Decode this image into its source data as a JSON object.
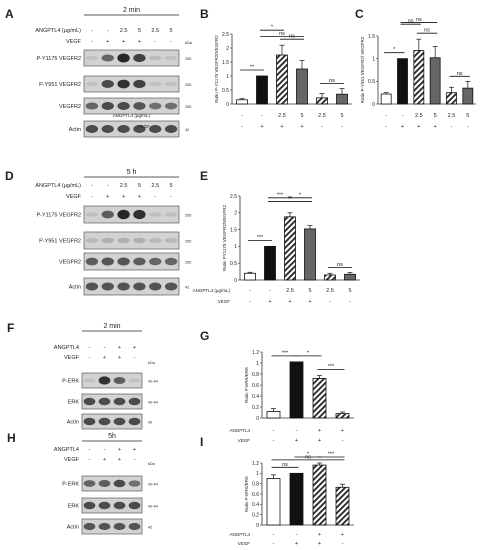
{
  "panels": {
    "A": {
      "letter": "A",
      "time": "2 min",
      "angptl4_label": "ANGPTL4 (µg/mL)",
      "vegf_label": "VEGF",
      "angptl4_vals": [
        "-",
        "-",
        "2.5",
        "5",
        "2.5",
        "5"
      ],
      "vegf_vals": [
        "-",
        "+",
        "+",
        "+",
        "-",
        "-"
      ],
      "kda": "kDa",
      "blots": [
        {
          "label": "P-Y1175 VEGFR2",
          "mw": "250",
          "bands": [
            0.05,
            0.55,
            0.9,
            0.75,
            0.08,
            0.05
          ]
        },
        {
          "label": "P-Y951 VEGFR2",
          "mw": "250",
          "bands": [
            0.05,
            0.7,
            0.85,
            0.75,
            0.05,
            0.05
          ]
        },
        {
          "label": "VEGFR2",
          "mw": "250",
          "bands": [
            0.55,
            0.7,
            0.7,
            0.65,
            0.5,
            0.5
          ]
        },
        {
          "label": "Actin",
          "mw": "42",
          "bands": [
            0.7,
            0.7,
            0.7,
            0.7,
            0.7,
            0.7
          ]
        }
      ]
    },
    "D": {
      "letter": "D",
      "time": "5 h",
      "angptl4_label": "ANGPTL4 (µg/mL)",
      "vegf_label": "VEGF",
      "angptl4_vals": [
        "-",
        "-",
        "2.5",
        "5",
        "2.5",
        "5"
      ],
      "vegf_vals": [
        "-",
        "+",
        "+",
        "+",
        "-",
        "-"
      ],
      "blots": [
        {
          "label": "P-Y1175 VEGFR2",
          "mw": "250",
          "bands": [
            0.05,
            0.6,
            0.9,
            0.85,
            0.05,
            0.05
          ]
        },
        {
          "label": "P-Y951 VEGFR2",
          "mw": "250",
          "bands": [
            0.1,
            0.15,
            0.15,
            0.15,
            0.1,
            0.1
          ]
        },
        {
          "label": "VEGFR2",
          "mw": "250",
          "bands": [
            0.6,
            0.65,
            0.65,
            0.6,
            0.55,
            0.55
          ]
        },
        {
          "label": "Actin",
          "mw": "42",
          "bands": [
            0.65,
            0.65,
            0.65,
            0.65,
            0.65,
            0.65
          ]
        }
      ]
    },
    "F": {
      "letter": "F",
      "time": "2 min",
      "angptl4_label": "ANGPTL4",
      "vegf_label": "VEGF",
      "angptl4_vals": [
        "-",
        "-",
        "+",
        "+"
      ],
      "vegf_vals": [
        "-",
        "+",
        "+",
        "-"
      ],
      "kda": "kDa",
      "blots": [
        {
          "label": "P-ERK",
          "mw": "42-44",
          "bands": [
            0.05,
            0.85,
            0.6,
            0.05
          ]
        },
        {
          "label": "ERK",
          "mw": "42-44",
          "bands": [
            0.7,
            0.7,
            0.7,
            0.7
          ]
        },
        {
          "label": "Actin",
          "mw": "42",
          "bands": [
            0.7,
            0.7,
            0.7,
            0.7
          ]
        }
      ]
    },
    "H": {
      "letter": "H",
      "time": "5h",
      "angptl4_label": "ANGPTL4",
      "vegf_label": "VEGF",
      "angptl4_vals": [
        "-",
        "-",
        "+",
        "+"
      ],
      "vegf_vals": [
        "-",
        "+",
        "+",
        "-"
      ],
      "kda": "kDa",
      "blots": [
        {
          "label": "P-ERK",
          "mw": "42-44",
          "bands": [
            0.55,
            0.6,
            0.7,
            0.5
          ]
        },
        {
          "label": "ERK",
          "mw": "42-44",
          "bands": [
            0.7,
            0.7,
            0.7,
            0.7
          ]
        },
        {
          "label": "Actin",
          "mw": "42",
          "bands": [
            0.65,
            0.65,
            0.65,
            0.65
          ]
        }
      ]
    }
  },
  "chart_data": [
    {
      "panel": "B",
      "type": "bar",
      "ylabel": "Ratio P-Y1175 VEGFR2/VEGFR2",
      "ylim": [
        0,
        2.5
      ],
      "yticks": [
        0,
        0.5,
        1,
        1.5,
        2,
        2.5
      ],
      "values": [
        0.15,
        1.0,
        1.75,
        1.25,
        0.22,
        0.35
      ],
      "errors": [
        0.04,
        0.0,
        0.35,
        0.3,
        0.15,
        0.2
      ],
      "fills": [
        "white",
        "black",
        "hatch",
        "gray",
        "hatch",
        "gray"
      ],
      "row_labels": [
        {
          "label": "ANGPTL4 (µg/mL)",
          "vals": [
            "-",
            "-",
            "2.5",
            "5",
            "2.5",
            "5"
          ]
        },
        {
          "label": "VEGF",
          "vals": [
            "-",
            "+",
            "+",
            "+",
            "-",
            "-"
          ]
        }
      ],
      "sig": [
        {
          "from": 0,
          "to": 1,
          "label": "**",
          "level": 0
        },
        {
          "from": 2,
          "to": 3,
          "label": "ns",
          "level": 0
        },
        {
          "from": 1,
          "to": 2,
          "label": "*",
          "level": 1
        },
        {
          "from": 1,
          "to": 3,
          "label": "ns",
          "level": 2
        },
        {
          "from": 4,
          "to": 5,
          "label": "ns",
          "level": -1
        }
      ]
    },
    {
      "panel": "C",
      "type": "bar",
      "ylabel": "Ratio P-Y951 VEGFR2/ VEGFR2",
      "ylim": [
        0,
        1.5
      ],
      "yticks": [
        0,
        0.5,
        1,
        1.5
      ],
      "values": [
        0.22,
        1.0,
        1.18,
        1.02,
        0.25,
        0.35
      ],
      "errors": [
        0.03,
        0.0,
        0.25,
        0.25,
        0.12,
        0.15
      ],
      "fills": [
        "white",
        "black",
        "hatch",
        "gray",
        "hatch",
        "gray"
      ],
      "row_labels": [
        {
          "label": "",
          "vals": [
            "-",
            "-",
            "2.5",
            "5",
            "2.5",
            "5"
          ]
        },
        {
          "label": "",
          "vals": [
            "-",
            "+",
            "+",
            "+",
            "-",
            "-"
          ]
        }
      ],
      "sig": [
        {
          "from": 0,
          "to": 1,
          "label": "*",
          "level": 0
        },
        {
          "from": 1,
          "to": 2,
          "label": "ns",
          "level": 1
        },
        {
          "from": 2,
          "to": 3,
          "label": "ns",
          "level": 0
        },
        {
          "from": 1,
          "to": 3,
          "label": "ns",
          "level": 2
        },
        {
          "from": 4,
          "to": 5,
          "label": "ns",
          "level": -1
        }
      ]
    },
    {
      "panel": "E",
      "type": "bar",
      "ylabel": "Ratio PY1175 VEGFR2/VEGFR2",
      "ylim": [
        0,
        2.5
      ],
      "yticks": [
        0,
        0.5,
        1,
        1.5,
        2,
        2.5
      ],
      "values": [
        0.2,
        1.0,
        1.88,
        1.52,
        0.15,
        0.17
      ],
      "errors": [
        0.03,
        0.0,
        0.12,
        0.1,
        0.05,
        0.05
      ],
      "fills": [
        "white",
        "black",
        "hatch",
        "gray",
        "hatch",
        "gray"
      ],
      "row_labels": [
        {
          "label": "ANGPTL4 (µg/mL)",
          "vals": [
            "-",
            "-",
            "2.5",
            "5",
            "2.5",
            "5"
          ]
        },
        {
          "label": "VEGF",
          "vals": [
            "-",
            "+",
            "+",
            "+",
            "-",
            "-"
          ]
        }
      ],
      "sig": [
        {
          "from": 0,
          "to": 1,
          "label": "***",
          "level": 0
        },
        {
          "from": 1,
          "to": 2,
          "label": "***",
          "level": 1
        },
        {
          "from": 2,
          "to": 3,
          "label": "*",
          "level": 1
        },
        {
          "from": 1,
          "to": 3,
          "label": "**",
          "level": 2
        },
        {
          "from": 4,
          "to": 5,
          "label": "ns",
          "level": -1
        }
      ]
    },
    {
      "panel": "G",
      "type": "bar",
      "ylabel": "Ratio P-ERK/ERK",
      "ylim": [
        0,
        1.2
      ],
      "yticks": [
        0,
        0.2,
        0.4,
        0.6,
        0.8,
        1.0,
        1.2
      ],
      "values": [
        0.12,
        1.02,
        0.72,
        0.08
      ],
      "errors": [
        0.05,
        0.0,
        0.05,
        0.03
      ],
      "fills": [
        "white",
        "black",
        "hatch",
        "hatch"
      ],
      "row_labels": [
        {
          "label": "ANGPTL4",
          "vals": [
            "-",
            "-",
            "+",
            "+"
          ]
        },
        {
          "label": "VEGF",
          "vals": [
            "-",
            "+",
            "+",
            "-"
          ]
        }
      ],
      "sig": [
        {
          "from": 0,
          "to": 1,
          "label": "***",
          "level": 0
        },
        {
          "from": 1,
          "to": 2,
          "label": "*",
          "level": 0
        },
        {
          "from": 2,
          "to": 3,
          "label": "***",
          "level": 0
        }
      ]
    },
    {
      "panel": "I",
      "type": "bar",
      "ylabel": "Ratio P-ERK/ERK",
      "ylim": [
        0,
        1.2
      ],
      "yticks": [
        0,
        0.2,
        0.4,
        0.6,
        0.8,
        1.0,
        1.2
      ],
      "values": [
        0.9,
        1.0,
        1.16,
        0.73
      ],
      "errors": [
        0.07,
        0.0,
        0.04,
        0.06
      ],
      "fills": [
        "white",
        "black",
        "hatch",
        "hatch"
      ],
      "row_labels": [
        {
          "label": "ANGPTL4",
          "vals": [
            "-",
            "-",
            "+",
            "+"
          ]
        },
        {
          "label": "VEGF",
          "vals": [
            "-",
            "+",
            "+",
            "-"
          ]
        }
      ],
      "sig": [
        {
          "from": 0,
          "to": 1,
          "label": "ns",
          "level": 0
        },
        {
          "from": 1,
          "to": 2,
          "label": "*",
          "level": 0
        },
        {
          "from": 2,
          "to": 3,
          "label": "***",
          "level": 0
        },
        {
          "from": 0,
          "to": 3,
          "label": "ns",
          "level": 1
        }
      ]
    }
  ]
}
